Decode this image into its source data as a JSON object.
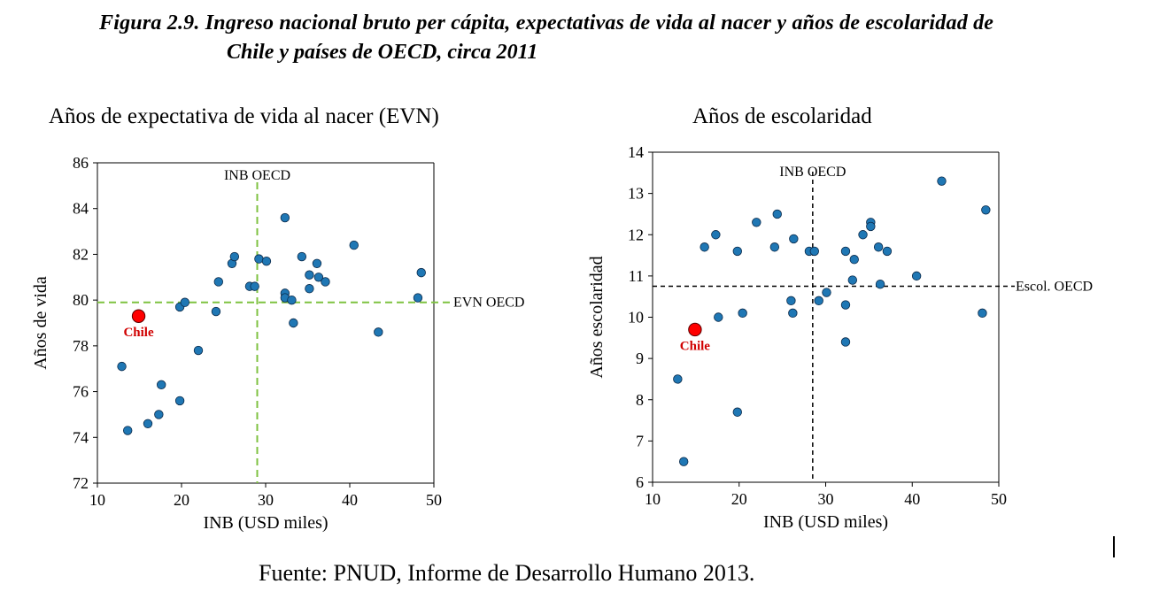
{
  "figure": {
    "title_line1": "Figura 2.9. Ingreso nacional bruto per cápita, expectativas de vida al nacer y años de escolaridad de",
    "title_line2": "Chile y países de OECD, circa 2011",
    "source": "Fuente: PNUD, Informe de Desarrollo Humano 2013."
  },
  "chart_data": [
    {
      "type": "scatter",
      "title": "Años de expectativa de vida al nacer (EVN)",
      "xlabel": "INB (USD miles)",
      "ylabel": "Años de vida",
      "xlim": [
        10,
        50
      ],
      "ylim": [
        72,
        86
      ],
      "xticks": [
        10,
        20,
        30,
        40,
        50
      ],
      "yticks": [
        72,
        74,
        76,
        78,
        80,
        82,
        84,
        86
      ],
      "grid": false,
      "colors": {
        "points": "#1f77b4",
        "highlight": "#ff0000",
        "reference": "#7fc241"
      },
      "reference_lines": [
        {
          "orientation": "vertical",
          "value": 29,
          "label": "INB OECD"
        },
        {
          "orientation": "horizontal",
          "value": 79.9,
          "label": "EVN OECD"
        }
      ],
      "highlight": {
        "label": "Chile",
        "x": 14.9,
        "y": 79.3
      },
      "points": [
        [
          12.9,
          77.1
        ],
        [
          13.6,
          74.3
        ],
        [
          16.0,
          74.6
        ],
        [
          17.3,
          75.0
        ],
        [
          17.6,
          76.3
        ],
        [
          19.8,
          75.6
        ],
        [
          19.8,
          79.7
        ],
        [
          20.4,
          79.9
        ],
        [
          22.0,
          77.8
        ],
        [
          24.1,
          79.5
        ],
        [
          24.4,
          80.8
        ],
        [
          26.0,
          81.6
        ],
        [
          26.3,
          81.9
        ],
        [
          28.1,
          80.6
        ],
        [
          28.7,
          80.6
        ],
        [
          29.2,
          81.8
        ],
        [
          30.1,
          81.7
        ],
        [
          32.3,
          83.6
        ],
        [
          32.3,
          80.3
        ],
        [
          32.3,
          80.1
        ],
        [
          33.1,
          80.0
        ],
        [
          33.3,
          79.0
        ],
        [
          34.3,
          81.9
        ],
        [
          35.2,
          81.1
        ],
        [
          35.2,
          80.5
        ],
        [
          36.1,
          81.6
        ],
        [
          36.3,
          81.0
        ],
        [
          37.1,
          80.8
        ],
        [
          40.5,
          82.4
        ],
        [
          43.4,
          78.6
        ],
        [
          48.1,
          80.1
        ],
        [
          48.5,
          81.2
        ]
      ]
    },
    {
      "type": "scatter",
      "title": "Años de escolaridad",
      "xlabel": "INB (USD miles)",
      "ylabel": "Años escolaridad",
      "xlim": [
        10,
        50
      ],
      "ylim": [
        6,
        14
      ],
      "xticks": [
        10,
        20,
        30,
        40,
        50
      ],
      "yticks": [
        6,
        7,
        8,
        9,
        10,
        11,
        12,
        13,
        14
      ],
      "grid": false,
      "colors": {
        "points": "#1f77b4",
        "highlight": "#ff0000",
        "reference": "#000000"
      },
      "reference_lines": [
        {
          "orientation": "vertical",
          "value": 28.5,
          "label": "INB OECD"
        },
        {
          "orientation": "horizontal",
          "value": 10.75,
          "label": "Escol. OECD"
        }
      ],
      "highlight": {
        "label": "Chile",
        "x": 14.9,
        "y": 9.7
      },
      "points": [
        [
          12.9,
          8.5
        ],
        [
          13.6,
          6.5
        ],
        [
          16.0,
          11.7
        ],
        [
          17.3,
          12.0
        ],
        [
          17.6,
          10.0
        ],
        [
          19.8,
          11.6
        ],
        [
          19.8,
          7.7
        ],
        [
          20.4,
          10.1
        ],
        [
          22.0,
          12.3
        ],
        [
          24.1,
          11.7
        ],
        [
          24.4,
          12.5
        ],
        [
          26.0,
          10.4
        ],
        [
          26.2,
          10.1
        ],
        [
          26.3,
          11.9
        ],
        [
          28.1,
          11.6
        ],
        [
          28.7,
          11.6
        ],
        [
          29.2,
          10.4
        ],
        [
          30.1,
          10.6
        ],
        [
          32.3,
          11.6
        ],
        [
          32.3,
          10.3
        ],
        [
          32.3,
          9.4
        ],
        [
          33.1,
          10.9
        ],
        [
          33.3,
          11.4
        ],
        [
          34.3,
          12.0
        ],
        [
          35.2,
          12.3
        ],
        [
          35.2,
          12.2
        ],
        [
          36.1,
          11.7
        ],
        [
          36.3,
          10.8
        ],
        [
          37.1,
          11.6
        ],
        [
          40.5,
          11.0
        ],
        [
          43.4,
          13.3
        ],
        [
          48.1,
          10.1
        ],
        [
          48.5,
          12.6
        ]
      ]
    }
  ]
}
